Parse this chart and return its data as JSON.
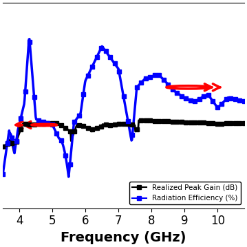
{
  "title": "",
  "xlabel": "Frequency (GHz)",
  "ylabel": "",
  "xlim": [
    3.5,
    10.8
  ],
  "background_color": "#ffffff",
  "legend_labels": [
    "Realized Peak Gain (dB)",
    "Radiation Efficiency (%)"
  ],
  "legend_colors": [
    "black",
    "blue"
  ],
  "gain_color": "black",
  "eff_color": "blue",
  "gain_marker": "s",
  "eff_marker": "s",
  "xlabel_fontsize": 14,
  "tick_fontsize": 12
}
